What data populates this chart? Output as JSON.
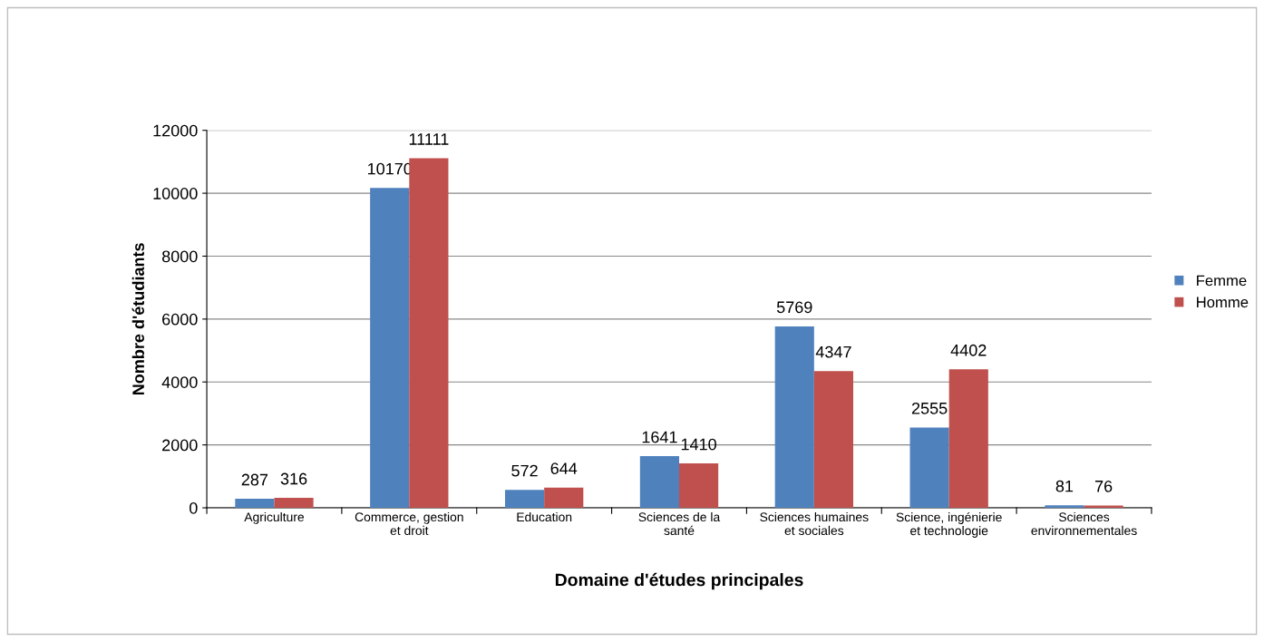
{
  "chart_data": {
    "type": "bar",
    "xlabel": "Domaine d'études principales",
    "ylabel": "Nombre d'étudiants",
    "categories": [
      "Agriculture",
      "Commerce, gestion\net droit",
      "Education",
      "Sciences de la\nsanté",
      "Sciences humaines\net sociales",
      "Science, ingénierie\net technologie",
      "Sciences\nenvironnementales"
    ],
    "series": [
      {
        "name": "Femme",
        "color": "#4f81bd",
        "values": [
          287,
          10170,
          572,
          1641,
          5769,
          2555,
          81
        ]
      },
      {
        "name": "Homme",
        "color": "#c0504d",
        "values": [
          316,
          11111,
          644,
          1410,
          4347,
          4402,
          76
        ]
      }
    ],
    "ylim": [
      0,
      12000
    ],
    "yticks": [
      0,
      2000,
      4000,
      6000,
      8000,
      10000,
      12000
    ],
    "grid": "y",
    "legend": "right",
    "data_labels": true
  }
}
